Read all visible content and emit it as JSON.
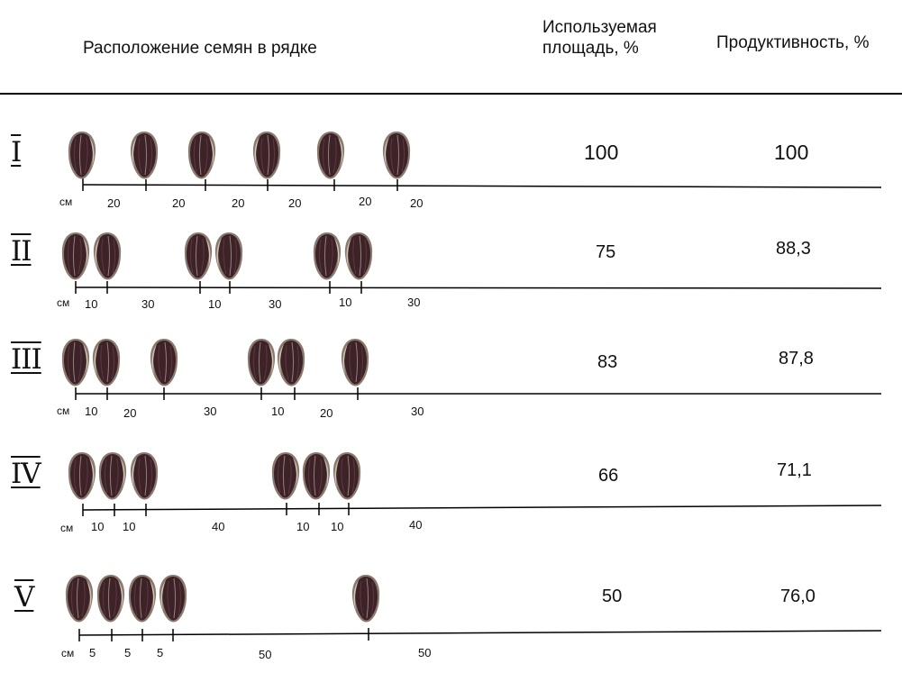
{
  "header": {
    "seed_layout": "Расположение семян в рядке",
    "used_area_line1": "Используемая",
    "used_area_line2": "площадь, %",
    "productivity": "Продуктивность, %"
  },
  "unit": "см",
  "rows": [
    {
      "label": "I",
      "used_area": "100",
      "productivity": "100",
      "spacings": [
        "20",
        "20",
        "20",
        "20",
        "20",
        "20"
      ]
    },
    {
      "label": "II",
      "used_area": "75",
      "productivity": "88,3",
      "spacings": [
        "10",
        "30",
        "10",
        "30",
        "10",
        "30"
      ]
    },
    {
      "label": "III",
      "used_area": "83",
      "productivity": "87,8",
      "spacings": [
        "10",
        "20",
        "30",
        "10",
        "20",
        "30"
      ]
    },
    {
      "label": "IV",
      "used_area": "66",
      "productivity": "71,1",
      "spacings": [
        "10",
        "10",
        "40",
        "10",
        "10",
        "40"
      ]
    },
    {
      "label": "V",
      "used_area": "50",
      "productivity": "76,0",
      "spacings": [
        "5",
        "5",
        "5",
        "50",
        "50"
      ]
    }
  ],
  "icons": {
    "seed": "sunflower-seed-icon"
  }
}
